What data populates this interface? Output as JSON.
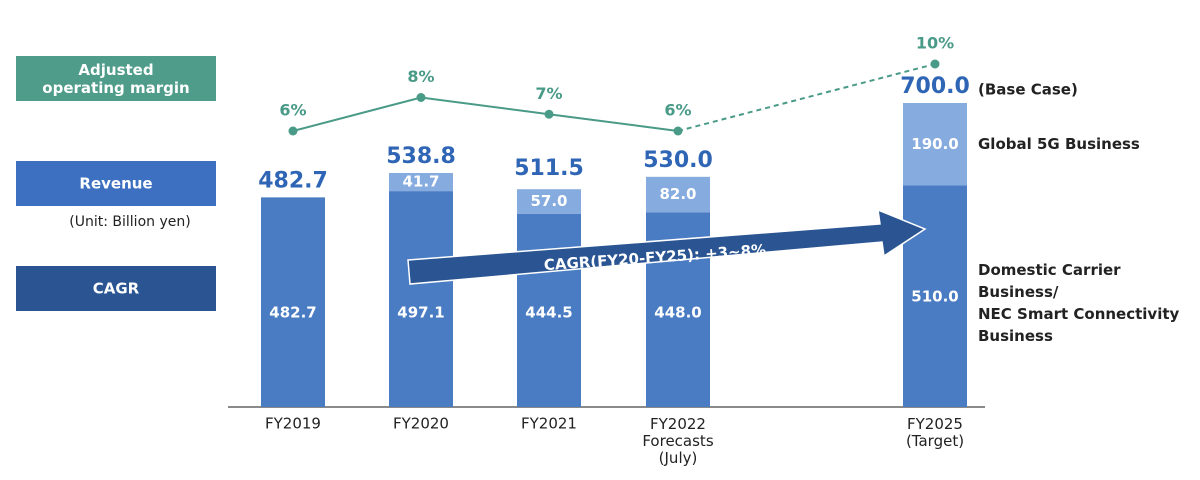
{
  "chart_data": {
    "type": "bar",
    "categories": [
      "FY2019",
      "FY2020",
      "FY2021",
      "FY2022\nForecasts\n(July)",
      "FY2025\n(Target)"
    ],
    "series": [
      {
        "name": "Domestic Carrier\nBusiness/\nNEC Smart Connectivity\nBusiness",
        "color": "#4a7cc3",
        "values": [
          482.7,
          497.1,
          444.5,
          448.0,
          510.0
        ],
        "value_labels": [
          "482.7",
          "497.1",
          "444.5",
          "448.0",
          "510.0"
        ]
      },
      {
        "name": "Global 5G Business",
        "color": "#86abdf",
        "values": [
          null,
          41.7,
          57.0,
          82.0,
          190.0
        ],
        "value_labels": [
          null,
          "41.7",
          "57.0",
          "82.0",
          "190.0"
        ]
      }
    ],
    "totals": [
      482.7,
      538.8,
      511.5,
      530.0,
      700.0
    ],
    "totals_labels": [
      "482.7",
      "538.8",
      "511.5",
      "530.0",
      "700.0"
    ],
    "line": {
      "name": "Adjusted\noperating margin",
      "color": "#4a9a88",
      "values": [
        6,
        8,
        7,
        6,
        10
      ],
      "value_labels": [
        "6%",
        "8%",
        "7%",
        "6%",
        "10%"
      ]
    },
    "revenue_label": "Revenue",
    "unit": "(Unit: Billion yen)",
    "cagr_label": "CAGR",
    "cagr_annotation": "CAGR(FY20-FY25): +3~8%",
    "base_case": "(Base Case)"
  }
}
